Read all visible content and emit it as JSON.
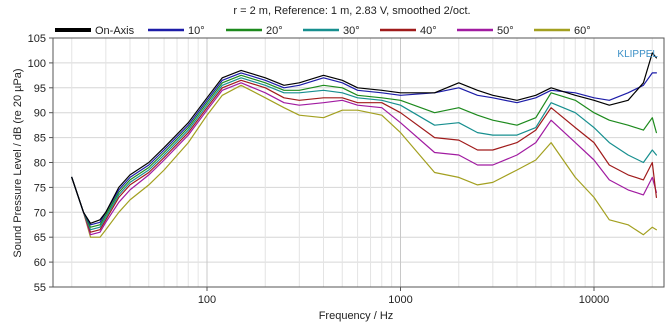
{
  "chart_data": {
    "type": "line",
    "title": "r = 2 m, Reference: 1 m, 2.83 V, smoothed 2/oct.",
    "xlabel": "Frequency / Hz",
    "ylabel": "Sound Pressure Level / dB (re 20 µPa)",
    "xscale": "log",
    "xlim": [
      16,
      23000
    ],
    "ylim": [
      55,
      105
    ],
    "xticks": [
      100,
      1000,
      10000
    ],
    "xtick_labels": [
      "100",
      "1000",
      "10000"
    ],
    "yticks": [
      55,
      60,
      65,
      70,
      75,
      80,
      85,
      90,
      95,
      100,
      105
    ],
    "ytick_labels": [
      "55",
      "60",
      "65",
      "70",
      "75",
      "80",
      "85",
      "90",
      "95",
      "100",
      "105"
    ],
    "grid": true,
    "legend_position": "top",
    "watermark": "KLIPPEL",
    "series": [
      {
        "name": "On-Axis",
        "color": "#000000",
        "x": [
          20,
          23,
          25,
          28,
          30,
          35,
          40,
          50,
          60,
          80,
          100,
          120,
          150,
          200,
          250,
          300,
          400,
          500,
          600,
          800,
          1000,
          1500,
          2000,
          2500,
          3000,
          4000,
          5000,
          6000,
          8000,
          10000,
          12000,
          15000,
          18000,
          20000,
          21000
        ],
        "y": [
          77,
          70,
          67.8,
          68.5,
          70,
          75,
          77.5,
          80,
          83,
          88,
          93,
          97,
          98.5,
          97,
          95.5,
          96,
          97.5,
          96.5,
          95,
          94.5,
          94,
          94,
          96,
          94.5,
          93.5,
          92.5,
          93.5,
          95,
          93.5,
          92.5,
          91.5,
          92.5,
          96,
          102,
          101
        ]
      },
      {
        "name": "10°",
        "color": "#1c1ca8",
        "x": [
          20,
          23,
          25,
          28,
          30,
          35,
          40,
          50,
          60,
          80,
          100,
          120,
          150,
          200,
          250,
          300,
          400,
          500,
          600,
          800,
          1000,
          1500,
          2000,
          2500,
          3000,
          4000,
          5000,
          6000,
          8000,
          10000,
          12000,
          15000,
          18000,
          20000,
          21000
        ],
        "y": [
          77,
          70,
          67.5,
          68,
          70,
          74.5,
          77,
          79.5,
          82.5,
          87.5,
          92.5,
          96.5,
          98,
          96.5,
          95,
          95.5,
          97,
          96,
          94.5,
          94,
          93.5,
          94,
          95,
          93.5,
          93,
          92,
          93,
          94.5,
          94,
          93,
          92.5,
          94,
          95.5,
          98,
          98
        ]
      },
      {
        "name": "20°",
        "color": "#1d8a1d",
        "x": [
          20,
          23,
          25,
          28,
          30,
          35,
          40,
          50,
          60,
          80,
          100,
          120,
          150,
          200,
          250,
          300,
          400,
          500,
          600,
          800,
          1000,
          1500,
          2000,
          2500,
          3000,
          4000,
          5000,
          6000,
          8000,
          10000,
          12000,
          15000,
          18000,
          20000,
          21000
        ],
        "y": [
          77,
          70,
          67,
          67.5,
          69.5,
          74,
          76.5,
          79,
          82,
          87,
          92,
          96,
          97.5,
          96,
          94.5,
          94.5,
          95.5,
          95,
          93.5,
          93,
          92.5,
          90,
          91,
          89.5,
          88.5,
          87.5,
          89,
          94,
          92.5,
          90,
          88.5,
          87.5,
          86.5,
          89,
          86
        ]
      },
      {
        "name": "30°",
        "color": "#178f8f",
        "x": [
          20,
          23,
          25,
          28,
          30,
          35,
          40,
          50,
          60,
          80,
          100,
          120,
          150,
          200,
          250,
          300,
          400,
          500,
          600,
          800,
          1000,
          1500,
          2000,
          2500,
          3000,
          4000,
          5000,
          6000,
          8000,
          10000,
          12000,
          15000,
          18000,
          20000,
          21000
        ],
        "y": [
          77,
          70,
          66.5,
          67,
          69,
          73.5,
          76,
          78.5,
          81.5,
          86.5,
          91.5,
          95.5,
          97,
          95.5,
          94,
          94,
          94.5,
          94,
          93,
          92.5,
          91.5,
          87.5,
          88,
          86,
          85.5,
          85.5,
          87,
          92,
          90,
          87,
          84,
          81.5,
          80,
          82.5,
          81.5
        ]
      },
      {
        "name": "40°",
        "color": "#a01b1b",
        "x": [
          20,
          23,
          25,
          28,
          30,
          35,
          40,
          50,
          60,
          80,
          100,
          120,
          150,
          200,
          250,
          300,
          400,
          500,
          600,
          800,
          1000,
          1500,
          2000,
          2500,
          3000,
          4000,
          5000,
          6000,
          8000,
          10000,
          12000,
          15000,
          18000,
          20000,
          21000
        ],
        "y": [
          77,
          70,
          66,
          66.5,
          68.5,
          73,
          75.5,
          78,
          81,
          86,
          91,
          95,
          96.5,
          95,
          93,
          92.5,
          93,
          93,
          92,
          92,
          90,
          85,
          84.5,
          82.5,
          82.5,
          84,
          86.5,
          91,
          87,
          84,
          79.5,
          77.5,
          76.5,
          80,
          73
        ]
      },
      {
        "name": "50°",
        "color": "#a11ba1",
        "x": [
          20,
          23,
          25,
          28,
          30,
          35,
          40,
          50,
          60,
          80,
          100,
          120,
          150,
          200,
          250,
          300,
          400,
          500,
          600,
          800,
          1000,
          1500,
          2000,
          2500,
          3000,
          4000,
          5000,
          6000,
          8000,
          10000,
          12000,
          15000,
          18000,
          20000,
          21000
        ],
        "y": [
          77,
          70,
          65.5,
          66,
          68,
          72,
          74.5,
          77.5,
          80.5,
          85.5,
          90.5,
          94.5,
          96,
          94,
          92,
          91.5,
          92,
          92.5,
          91.5,
          91,
          88,
          82,
          81.5,
          79.5,
          79.5,
          81.5,
          84,
          88.5,
          84,
          80.5,
          76.5,
          74.5,
          73.5,
          77,
          74
        ]
      },
      {
        "name": "60°",
        "color": "#a3a020",
        "x": [
          20,
          23,
          25,
          28,
          30,
          35,
          40,
          50,
          60,
          80,
          100,
          120,
          150,
          200,
          250,
          300,
          400,
          500,
          600,
          800,
          1000,
          1500,
          2000,
          2500,
          3000,
          4000,
          5000,
          6000,
          8000,
          10000,
          12000,
          15000,
          18000,
          20000,
          21000
        ],
        "y": [
          77,
          70,
          65,
          65,
          66.5,
          70,
          72.5,
          75.5,
          78.5,
          84,
          89.5,
          93.5,
          95.5,
          93,
          91,
          89.5,
          89,
          90.5,
          90.5,
          89.5,
          86,
          78,
          77,
          75.5,
          76,
          78.5,
          80.5,
          84,
          77,
          73,
          68.5,
          67.5,
          65.5,
          67,
          66.5
        ]
      }
    ]
  }
}
